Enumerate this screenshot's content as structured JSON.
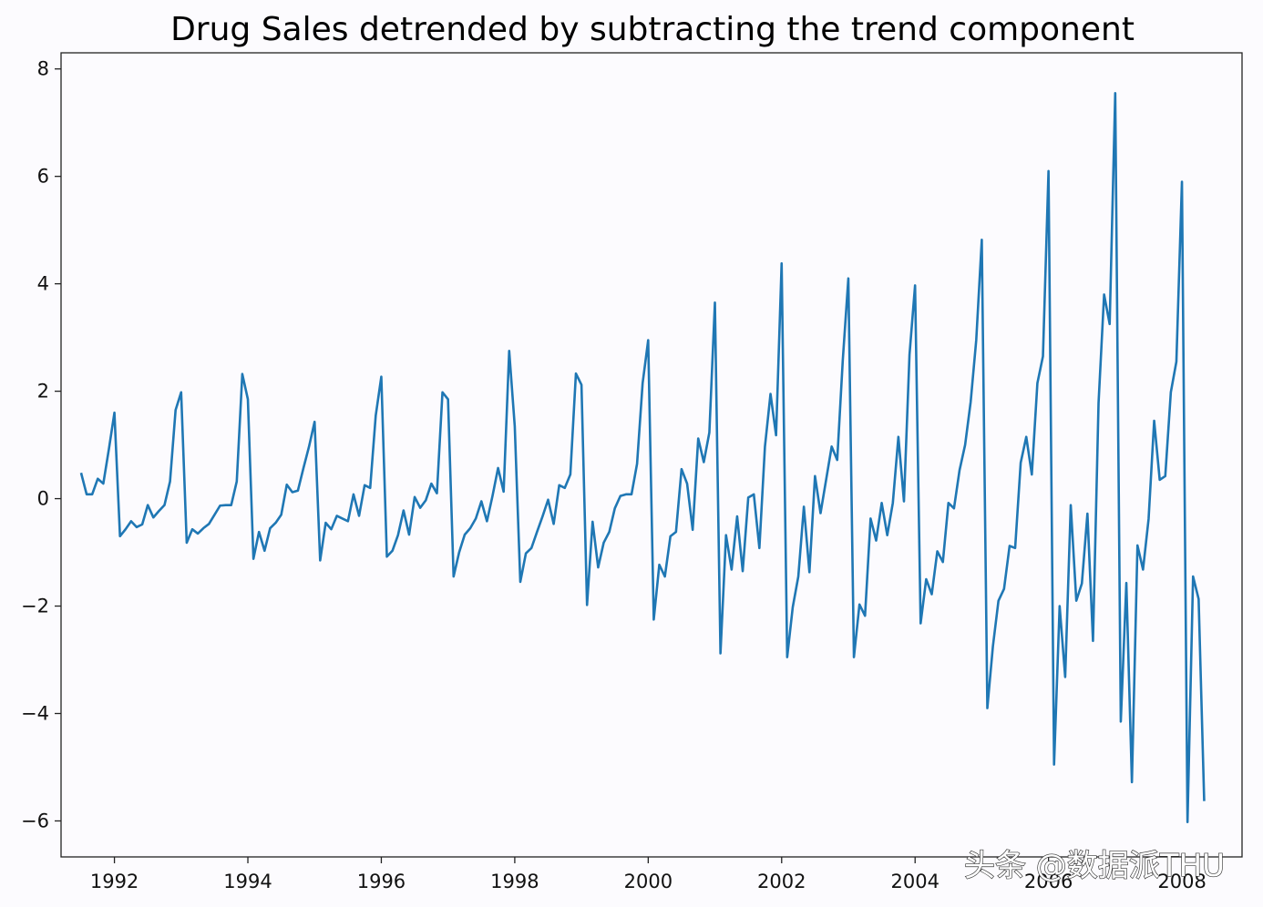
{
  "chart_data": {
    "type": "line",
    "title": "Drug Sales detrended by subtracting the trend component",
    "xlabel": "",
    "ylabel": "",
    "xlim": [
      1991.2,
      2008.9
    ],
    "ylim": [
      -6.67,
      8.3
    ],
    "x_ticks": [
      1992,
      1994,
      1996,
      1998,
      2000,
      2002,
      2004,
      2006,
      2008
    ],
    "x_tick_labels": [
      "1992",
      "1994",
      "1996",
      "1998",
      "2000",
      "2002",
      "2004",
      "2006",
      "2008"
    ],
    "y_ticks": [
      8,
      6,
      4,
      2,
      0,
      -2,
      -4,
      -6
    ],
    "y_tick_labels": [
      "8",
      "6",
      "4",
      "2",
      "0",
      "−2",
      "−4",
      "−6"
    ],
    "grid": false,
    "legend": false,
    "series": [
      {
        "color": "#1f77b4",
        "x_start": 1991.5,
        "x_step": 0.08333,
        "values": [
          0.48,
          0.08,
          0.08,
          0.37,
          0.28,
          0.92,
          1.6,
          -0.7,
          -0.57,
          -0.42,
          -0.53,
          -0.48,
          -0.12,
          -0.35,
          -0.23,
          -0.12,
          0.32,
          1.65,
          1.98,
          -0.82,
          -0.57,
          -0.65,
          -0.55,
          -0.47,
          -0.3,
          -0.13,
          -0.12,
          -0.12,
          0.32,
          2.32,
          1.85,
          -1.12,
          -0.62,
          -0.97,
          -0.55,
          -0.45,
          -0.3,
          0.26,
          0.12,
          0.15,
          0.57,
          0.97,
          1.43,
          -1.15,
          -0.45,
          -0.57,
          -0.32,
          -0.37,
          -0.42,
          0.08,
          -0.32,
          0.25,
          0.2,
          1.55,
          2.27,
          -1.08,
          -0.97,
          -0.68,
          -0.22,
          -0.67,
          0.03,
          -0.17,
          -0.03,
          0.28,
          0.1,
          1.98,
          1.85,
          -1.45,
          -1.0,
          -0.67,
          -0.55,
          -0.37,
          -0.05,
          -0.42,
          0.05,
          0.57,
          0.13,
          2.75,
          1.35,
          -1.55,
          -1.02,
          -0.92,
          -0.62,
          -0.33,
          -0.02,
          -0.47,
          0.25,
          0.2,
          0.45,
          2.33,
          2.12,
          -1.98,
          -0.43,
          -1.28,
          -0.82,
          -0.62,
          -0.18,
          0.05,
          0.08,
          0.08,
          0.65,
          2.15,
          2.95,
          -2.25,
          -1.23,
          -1.45,
          -0.7,
          -0.62,
          0.55,
          0.28,
          -0.58,
          1.12,
          0.68,
          1.23,
          3.65,
          -2.88,
          -0.68,
          -1.32,
          -0.33,
          -1.35,
          0.02,
          0.08,
          -0.92,
          0.97,
          1.95,
          1.18,
          4.38,
          -2.95,
          -2.02,
          -1.45,
          -0.15,
          -1.37,
          0.42,
          -0.27,
          0.35,
          0.97,
          0.72,
          2.58,
          4.1,
          -2.95,
          -1.97,
          -2.18,
          -0.37,
          -0.78,
          -0.08,
          -0.68,
          -0.08,
          1.15,
          -0.05,
          2.68,
          3.97,
          -2.32,
          -1.5,
          -1.78,
          -0.98,
          -1.18,
          -0.08,
          -0.18,
          0.53,
          1.0,
          1.8,
          2.95,
          4.82,
          -3.9,
          -2.75,
          -1.9,
          -1.68,
          -0.88,
          -0.92,
          0.67,
          1.15,
          0.45,
          2.15,
          2.65,
          6.1,
          -4.95,
          -2.0,
          -3.32,
          -0.12,
          -1.9,
          -1.58,
          -0.28,
          -2.65,
          1.78,
          3.8,
          3.25,
          7.55,
          -4.15,
          -1.57,
          -5.28,
          -0.87,
          -1.32,
          -0.38,
          1.45,
          0.35,
          0.42,
          1.98,
          2.55,
          5.9,
          -6.02,
          -1.45,
          -1.87,
          -5.63
        ]
      }
    ]
  },
  "watermark": {
    "text": "头条 @数据派THU"
  }
}
